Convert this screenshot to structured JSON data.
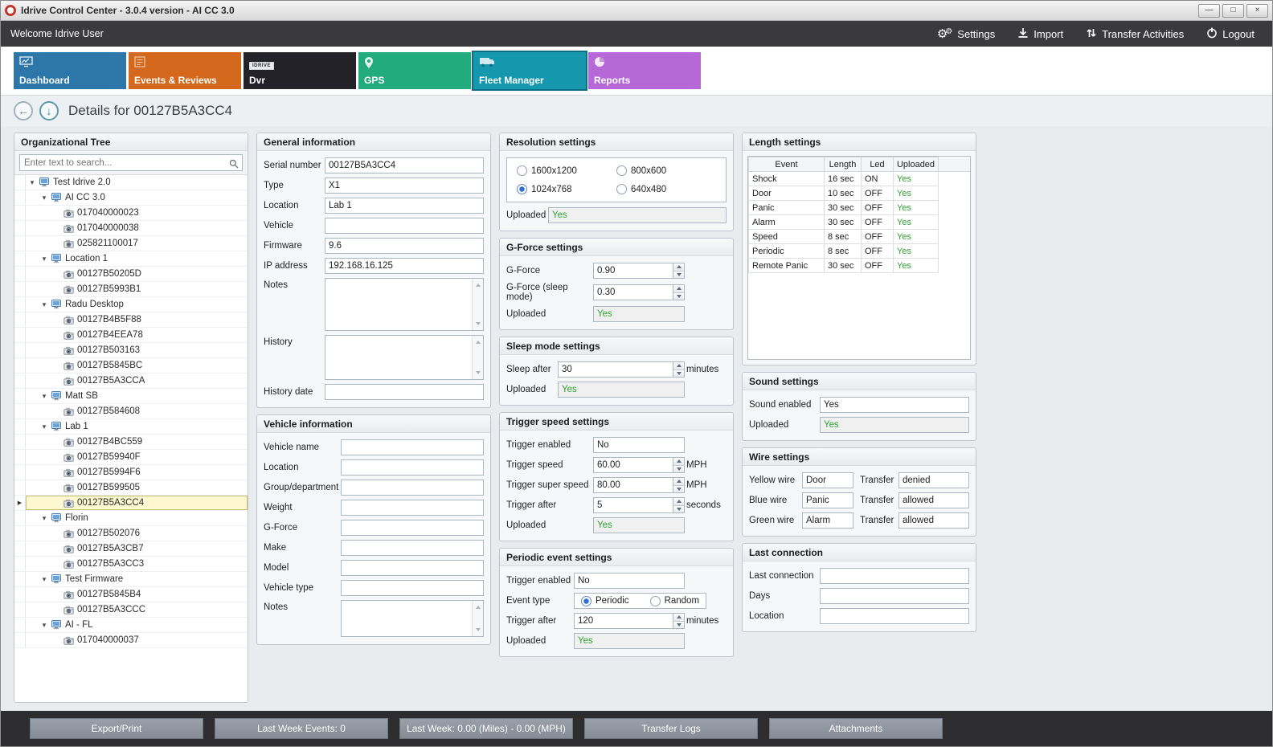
{
  "window": {
    "title": "Idrive Control Center - 3.0.4 version - AI CC 3.0",
    "controls": {
      "minimize": "—",
      "maximize": "□",
      "close": "×"
    }
  },
  "topbar": {
    "welcome": "Welcome Idrive User",
    "settings": "Settings",
    "import": "Import",
    "transfer": "Transfer Activities",
    "logout": "Logout"
  },
  "tabs": {
    "dashboard": "Dashboard",
    "events": "Events & Reviews",
    "dvr": "Dvr",
    "dvr_badge": "IDRIVE",
    "gps": "GPS",
    "fleet": "Fleet Manager",
    "reports": "Reports"
  },
  "header": {
    "title": "Details for 00127B5A3CC4"
  },
  "tree": {
    "title": "Organizational Tree",
    "search_placeholder": "Enter text to search...",
    "items": [
      {
        "label": "Test Idrive 2.0",
        "level": 0,
        "type": "group"
      },
      {
        "label": "AI CC 3.0",
        "level": 1,
        "type": "group"
      },
      {
        "label": "017040000023",
        "level": 2,
        "type": "device"
      },
      {
        "label": "017040000038",
        "level": 2,
        "type": "device"
      },
      {
        "label": "025821100017",
        "level": 2,
        "type": "device"
      },
      {
        "label": "Location 1",
        "level": 1,
        "type": "group"
      },
      {
        "label": "00127B50205D",
        "level": 2,
        "type": "device"
      },
      {
        "label": "00127B5993B1",
        "level": 2,
        "type": "device"
      },
      {
        "label": "Radu Desktop",
        "level": 1,
        "type": "group"
      },
      {
        "label": "00127B4B5F88",
        "level": 2,
        "type": "device"
      },
      {
        "label": "00127B4EEA78",
        "level": 2,
        "type": "device"
      },
      {
        "label": "00127B503163",
        "level": 2,
        "type": "device"
      },
      {
        "label": "00127B5845BC",
        "level": 2,
        "type": "device"
      },
      {
        "label": "00127B5A3CCA",
        "level": 2,
        "type": "device"
      },
      {
        "label": "Matt SB",
        "level": 1,
        "type": "group"
      },
      {
        "label": "00127B584608",
        "level": 2,
        "type": "device"
      },
      {
        "label": "Lab 1",
        "level": 1,
        "type": "group"
      },
      {
        "label": "00127B4BC559",
        "level": 2,
        "type": "device"
      },
      {
        "label": "00127B59940F",
        "level": 2,
        "type": "device"
      },
      {
        "label": "00127B5994F6",
        "level": 2,
        "type": "device"
      },
      {
        "label": "00127B599505",
        "level": 2,
        "type": "device"
      },
      {
        "label": "00127B5A3CC4",
        "level": 2,
        "type": "device",
        "selected": true
      },
      {
        "label": "Florin",
        "level": 1,
        "type": "group"
      },
      {
        "label": "00127B502076",
        "level": 2,
        "type": "device"
      },
      {
        "label": "00127B5A3CB7",
        "level": 2,
        "type": "device"
      },
      {
        "label": "00127B5A3CC3",
        "level": 2,
        "type": "device"
      },
      {
        "label": "Test Firmware",
        "level": 1,
        "type": "group"
      },
      {
        "label": "00127B5845B4",
        "level": 2,
        "type": "device"
      },
      {
        "label": "00127B5A3CCC",
        "level": 2,
        "type": "device"
      },
      {
        "label": "AI - FL",
        "level": 1,
        "type": "group"
      },
      {
        "label": "017040000037",
        "level": 2,
        "type": "device"
      }
    ]
  },
  "general": {
    "title": "General information",
    "serial_label": "Serial number",
    "serial": "00127B5A3CC4",
    "type_label": "Type",
    "type": "X1",
    "location_label": "Location",
    "location": "Lab 1",
    "vehicle_label": "Vehicle",
    "vehicle": "",
    "firmware_label": "Firmware",
    "firmware": "9.6",
    "ip_label": "IP address",
    "ip": "192.168.16.125",
    "notes_label": "Notes",
    "history_label": "History",
    "history_date_label": "History date",
    "history_date": ""
  },
  "vehicle_info": {
    "title": "Vehicle information",
    "name_label": "Vehicle name",
    "name": "",
    "location_label": "Location",
    "location": "",
    "group_label": "Group/department",
    "group": "",
    "weight_label": "Weight",
    "weight": "",
    "gforce_label": "G-Force",
    "gforce": "",
    "make_label": "Make",
    "make": "",
    "model_label": "Model",
    "model": "",
    "type_label": "Vehicle type",
    "type": "",
    "notes_label": "Notes"
  },
  "resolution": {
    "title": "Resolution settings",
    "options": [
      "1600x1200",
      "800x600",
      "1024x768",
      "640x480"
    ],
    "selected": "1024x768",
    "uploaded_label": "Uploaded",
    "uploaded": "Yes"
  },
  "gforce": {
    "title": "G-Force settings",
    "gforce_label": "G-Force",
    "gforce": "0.90",
    "sleep_label": "G-Force (sleep mode)",
    "sleep": "0.30",
    "uploaded_label": "Uploaded",
    "uploaded": "Yes"
  },
  "sleep_mode": {
    "title": "Sleep mode settings",
    "after_label": "Sleep after",
    "after": "30",
    "after_suffix": "minutes",
    "uploaded_label": "Uploaded",
    "uploaded": "Yes"
  },
  "trigger_speed": {
    "title": "Trigger speed settings",
    "enabled_label": "Trigger enabled",
    "enabled": "No",
    "speed_label": "Trigger speed",
    "speed": "60.00",
    "speed_suffix": "MPH",
    "super_label": "Trigger super speed",
    "super": "80.00",
    "super_suffix": "MPH",
    "after_label": "Trigger after",
    "after": "5",
    "after_suffix": "seconds",
    "uploaded_label": "Uploaded",
    "uploaded": "Yes"
  },
  "periodic": {
    "title": "Periodic event settings",
    "enabled_label": "Trigger enabled",
    "enabled": "No",
    "event_type_label": "Event type",
    "options": [
      "Periodic",
      "Random"
    ],
    "selected": "Periodic",
    "after_label": "Trigger after",
    "after": "120",
    "after_suffix": "minutes",
    "uploaded_label": "Uploaded",
    "uploaded": "Yes"
  },
  "length_settings": {
    "title": "Length settings",
    "columns": [
      "Event",
      "Length",
      "Led",
      "Uploaded"
    ],
    "rows": [
      [
        "Shock",
        "16 sec",
        "ON",
        "Yes"
      ],
      [
        "Door",
        "10 sec",
        "OFF",
        "Yes"
      ],
      [
        "Panic",
        "30 sec",
        "OFF",
        "Yes"
      ],
      [
        "Alarm",
        "30 sec",
        "OFF",
        "Yes"
      ],
      [
        "Speed",
        "8 sec",
        "OFF",
        "Yes"
      ],
      [
        "Periodic",
        "8 sec",
        "OFF",
        "Yes"
      ],
      [
        "Remote Panic",
        "30 sec",
        "OFF",
        "Yes"
      ]
    ]
  },
  "sound": {
    "title": "Sound settings",
    "enabled_label": "Sound enabled",
    "enabled": "Yes",
    "uploaded_label": "Uploaded",
    "uploaded": "Yes"
  },
  "wire": {
    "title": "Wire settings",
    "rows": [
      {
        "label": "Yellow wire",
        "value": "Door",
        "transfer_label": "Transfer",
        "transfer": "denied"
      },
      {
        "label": "Blue wire",
        "value": "Panic",
        "transfer_label": "Transfer",
        "transfer": "allowed"
      },
      {
        "label": "Green wire",
        "value": "Alarm",
        "transfer_label": "Transfer",
        "transfer": "allowed"
      }
    ]
  },
  "last_connection": {
    "title": "Last connection",
    "last_label": "Last connection",
    "last": "",
    "days_label": "Days",
    "days": "",
    "location_label": "Location",
    "location": ""
  },
  "bottombar": {
    "buttons": [
      "Export/Print",
      "Last Week Events: 0",
      "Last Week: 0.00 (Miles) - 0.00 (MPH)",
      "Transfer Logs",
      "Attachments"
    ]
  },
  "colors": {
    "uploaded_green": "#2ea12e",
    "tab_dashboard": "#2d76a9",
    "tab_events": "#d4681c",
    "tab_dvr": "#232228",
    "tab_gps": "#22ab7c",
    "tab_fleet": "#1597ad",
    "tab_fleet_selected_border": "#0a6e86",
    "tab_reports": "#b668d9",
    "selected_tree_row": "#fdf8cf"
  }
}
